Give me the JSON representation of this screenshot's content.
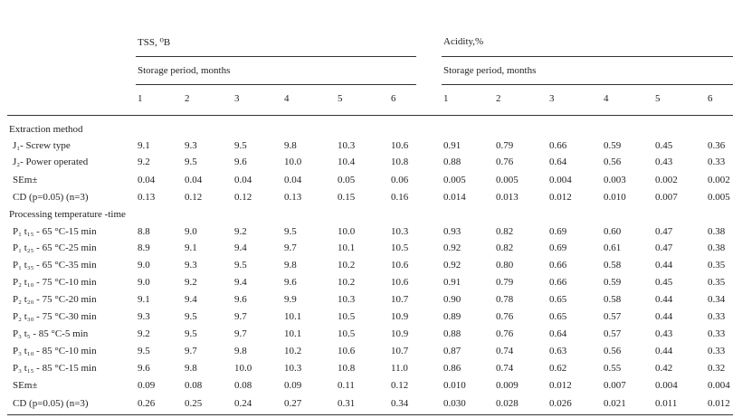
{
  "header": {
    "tss_label": "TSS, ⁰B",
    "acidity_label": "Acidity,%",
    "storage_tss": "Storage period, months",
    "storage_acidity": "Storage period, months",
    "months": [
      "1",
      "2",
      "3",
      "4",
      "5",
      "6"
    ]
  },
  "sections": {
    "extraction": "Extraction method",
    "processing": "Processing temperature -time"
  },
  "rows": [
    {
      "label": "J₁- Screw type",
      "tss": [
        "9.1",
        "9.3",
        "9.5",
        "9.8",
        "10.3",
        "10.6"
      ],
      "acid": [
        "0.91",
        "0.79",
        "0.66",
        "0.59",
        "0.45",
        "0.36"
      ]
    },
    {
      "label": "J₂- Power operated",
      "tss": [
        "9.2",
        "9.5",
        "9.6",
        "10.0",
        "10.4",
        "10.8"
      ],
      "acid": [
        "0.88",
        "0.76",
        "0.64",
        "0.56",
        "0.43",
        "0.33"
      ]
    },
    {
      "label": "SEm±",
      "tss": [
        "0.04",
        "0.04",
        "0.04",
        "0.04",
        "0.05",
        "0.06"
      ],
      "acid": [
        "0.005",
        "0.005",
        "0.004",
        "0.003",
        "0.002",
        "0.002"
      ]
    },
    {
      "label": "CD (p=0.05) (n=3)",
      "tss": [
        "0.13",
        "0.12",
        "0.12",
        "0.13",
        "0.15",
        "0.16"
      ],
      "acid": [
        "0.014",
        "0.013",
        "0.012",
        "0.010",
        "0.007",
        "0.005"
      ]
    },
    {
      "label": "P₁ t₁₅ - 65 °C-15 min",
      "tss": [
        "8.8",
        "9.0",
        "9.2",
        "9.5",
        "10.0",
        "10.3"
      ],
      "acid": [
        "0.93",
        "0.82",
        "0.69",
        "0.60",
        "0.47",
        "0.38"
      ]
    },
    {
      "label": "P₁ t₂₅ - 65 °C-25 min",
      "tss": [
        "8.9",
        "9.1",
        "9.4",
        "9.7",
        "10.1",
        "10.5"
      ],
      "acid": [
        "0.92",
        "0.82",
        "0.69",
        "0.61",
        "0.47",
        "0.38"
      ]
    },
    {
      "label": "P₁ t₃₅ - 65 °C-35 min",
      "tss": [
        "9.0",
        "9.3",
        "9.5",
        "9.8",
        "10.2",
        "10.6"
      ],
      "acid": [
        "0.92",
        "0.80",
        "0.66",
        "0.58",
        "0.44",
        "0.35"
      ]
    },
    {
      "label": "P₂ t₁₀ - 75 °C-10 min",
      "tss": [
        "9.0",
        "9.2",
        "9.4",
        "9.6",
        "10.2",
        "10.6"
      ],
      "acid": [
        "0.91",
        "0.79",
        "0.66",
        "0.59",
        "0.45",
        "0.35"
      ]
    },
    {
      "label": "P₂ t₂₀ - 75 °C-20 min",
      "tss": [
        "9.1",
        "9.4",
        "9.6",
        "9.9",
        "10.3",
        "10.7"
      ],
      "acid": [
        "0.90",
        "0.78",
        "0.65",
        "0.58",
        "0.44",
        "0.34"
      ]
    },
    {
      "label": "P₂ t₃₀ - 75 °C-30 min",
      "tss": [
        "9.3",
        "9.5",
        "9.7",
        "10.1",
        "10.5",
        "10.9"
      ],
      "acid": [
        "0.89",
        "0.76",
        "0.65",
        "0.57",
        "0.44",
        "0.33"
      ]
    },
    {
      "label": "P₃ t₅ - 85 °C-5 min",
      "tss": [
        "9.2",
        "9.5",
        "9.7",
        "10.1",
        "10.5",
        "10.9"
      ],
      "acid": [
        "0.88",
        "0.76",
        "0.64",
        "0.57",
        "0.43",
        "0.33"
      ]
    },
    {
      "label": "P₃ t₁₀ - 85 °C-10 min",
      "tss": [
        "9.5",
        "9.7",
        "9.8",
        "10.2",
        "10.6",
        "10.7"
      ],
      "acid": [
        "0.87",
        "0.74",
        "0.63",
        "0.56",
        "0.44",
        "0.33"
      ]
    },
    {
      "label": "P₃ t₁₅ - 85 °C-15 min",
      "tss": [
        "9.6",
        "9.8",
        "10.0",
        "10.3",
        "10.8",
        "11.0"
      ],
      "acid": [
        "0.86",
        "0.74",
        "0.62",
        "0.55",
        "0.42",
        "0.32"
      ]
    },
    {
      "label": "SEm±",
      "tss": [
        "0.09",
        "0.08",
        "0.08",
        "0.09",
        "0.11",
        "0.12"
      ],
      "acid": [
        "0.010",
        "0.009",
        "0.012",
        "0.007",
        "0.004",
        "0.004"
      ]
    },
    {
      "label": "CD (p=0.05) (n=3)",
      "tss": [
        "0.26",
        "0.25",
        "0.24",
        "0.27",
        "0.31",
        "0.34"
      ],
      "acid": [
        "0.030",
        "0.028",
        "0.026",
        "0.021",
        "0.011",
        "0.012"
      ]
    }
  ]
}
